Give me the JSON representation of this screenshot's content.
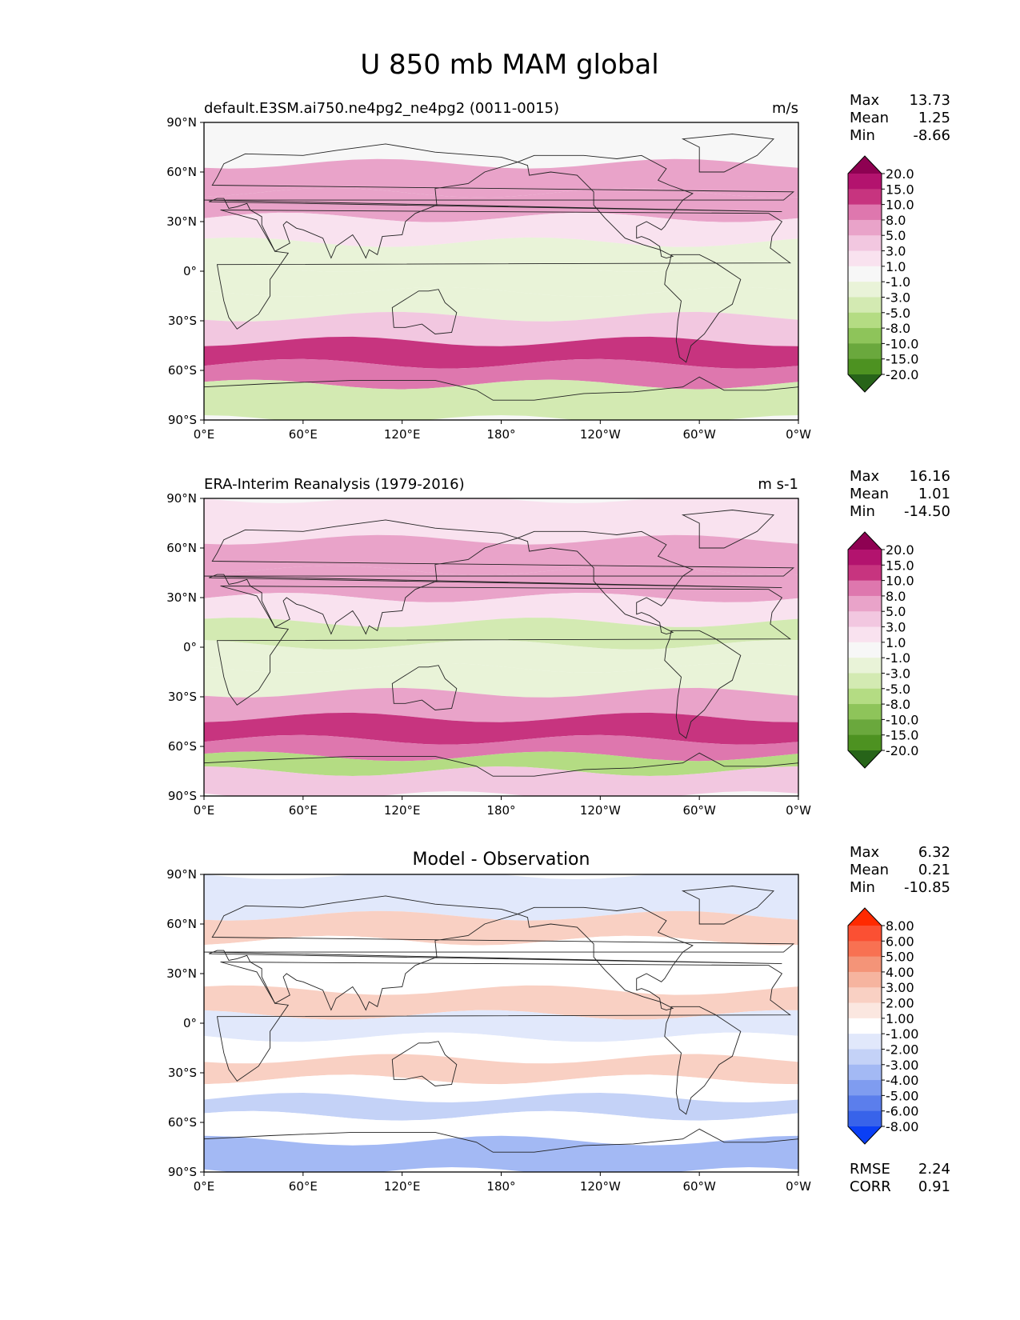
{
  "figure_title": "U 850 mb MAM global",
  "colors": {
    "land_white": "#ffffff",
    "axis": "#000000",
    "coast": "#222222"
  },
  "chart_data": [
    {
      "type": "contour-map",
      "id": "test",
      "title_left": "default.E3SM.ai750.ne4pg2_ne4pg2 (0011-0015)",
      "title_center": "",
      "units": "m/s",
      "stats": [
        {
          "label": "Max",
          "value": "13.73"
        },
        {
          "label": "Mean",
          "value": "1.25"
        },
        {
          "label": "Min",
          "value": "-8.66"
        }
      ],
      "colorbar": {
        "levels": [
          "20.0",
          "15.0",
          "10.0",
          "8.0",
          "5.0",
          "3.0",
          "1.0",
          "-1.0",
          "-3.0",
          "-5.0",
          "-8.0",
          "-10.0",
          "-15.0",
          "-20.0"
        ],
        "colors": [
          "#8e0152",
          "#b3136e",
          "#c7347f",
          "#de77ae",
          "#e9a3c9",
          "#f2c7e0",
          "#f9e2ef",
          "#f7f7f7",
          "#e9f3d8",
          "#d3eab2",
          "#b4dc83",
          "#8ec45a",
          "#6aa83d",
          "#4d9221",
          "#276419"
        ]
      },
      "xticks": [
        "0°E",
        "60°E",
        "120°E",
        "180°",
        "120°W",
        "60°W",
        "0°W"
      ],
      "yticks": [
        "90°N",
        "60°N",
        "30°N",
        "0°",
        "30°S",
        "60°S",
        "90°S"
      ],
      "bands": [
        {
          "lat": 75,
          "value": 0.5
        },
        {
          "lat": 55,
          "value": 6
        },
        {
          "lat": 40,
          "value": 6
        },
        {
          "lat": 25,
          "value": 2
        },
        {
          "lat": 10,
          "value": -2
        },
        {
          "lat": -5,
          "value": -3
        },
        {
          "lat": -20,
          "value": -2
        },
        {
          "lat": -35,
          "value": 4
        },
        {
          "lat": -50,
          "value": 13
        },
        {
          "lat": -62,
          "value": 8
        },
        {
          "lat": -75,
          "value": -5
        }
      ]
    },
    {
      "type": "contour-map",
      "id": "reference",
      "title_left": "ERA-Interim Reanalysis (1979-2016)",
      "title_center": "",
      "units": "m s-1",
      "stats": [
        {
          "label": "Max",
          "value": "16.16"
        },
        {
          "label": "Mean",
          "value": "1.01"
        },
        {
          "label": "Min",
          "value": "-14.50"
        }
      ],
      "colorbar": {
        "levels": [
          "20.0",
          "15.0",
          "10.0",
          "8.0",
          "5.0",
          "3.0",
          "1.0",
          "-1.0",
          "-3.0",
          "-5.0",
          "-8.0",
          "-10.0",
          "-15.0",
          "-20.0"
        ],
        "colors": [
          "#8e0152",
          "#b3136e",
          "#c7347f",
          "#de77ae",
          "#e9a3c9",
          "#f2c7e0",
          "#f9e2ef",
          "#f7f7f7",
          "#e9f3d8",
          "#d3eab2",
          "#b4dc83",
          "#8ec45a",
          "#6aa83d",
          "#4d9221",
          "#276419"
        ]
      },
      "xticks": [
        "0°E",
        "60°E",
        "120°E",
        "180°",
        "120°W",
        "60°W",
        "0°W"
      ],
      "yticks": [
        "90°N",
        "60°N",
        "30°N",
        "0°",
        "30°S",
        "60°S",
        "90°S"
      ],
      "bands": [
        {
          "lat": 75,
          "value": 2
        },
        {
          "lat": 55,
          "value": 5
        },
        {
          "lat": 38,
          "value": 7
        },
        {
          "lat": 22,
          "value": 1
        },
        {
          "lat": 8,
          "value": -5
        },
        {
          "lat": -5,
          "value": -3
        },
        {
          "lat": -20,
          "value": -3
        },
        {
          "lat": -35,
          "value": 5
        },
        {
          "lat": -50,
          "value": 14
        },
        {
          "lat": -62,
          "value": 9
        },
        {
          "lat": -70,
          "value": -6
        },
        {
          "lat": -80,
          "value": 4
        }
      ]
    },
    {
      "type": "contour-map",
      "id": "diff",
      "title_left": "",
      "title_center": "Model - Observation",
      "units": "",
      "stats": [
        {
          "label": "Max",
          "value": "6.32"
        },
        {
          "label": "Mean",
          "value": "0.21"
        },
        {
          "label": "Min",
          "value": "-10.85"
        }
      ],
      "colorbar": {
        "levels": [
          "8.00",
          "6.00",
          "5.00",
          "4.00",
          "3.00",
          "2.00",
          "1.00",
          "-1.00",
          "-2.00",
          "-3.00",
          "-4.00",
          "-5.00",
          "-6.00",
          "-8.00"
        ],
        "colors": [
          "#ff2a00",
          "#fb5033",
          "#f87152",
          "#f49478",
          "#f6b49f",
          "#f9d0c3",
          "#fbe7e0",
          "#ffffff",
          "#e1e8fb",
          "#c4d2f7",
          "#a3b9f4",
          "#7f9cf0",
          "#5b7eec",
          "#3863ea",
          "#0a3ff5"
        ]
      },
      "xticks": [
        "0°E",
        "60°E",
        "120°E",
        "180°",
        "120°W",
        "60°W",
        "0°W"
      ],
      "yticks": [
        "90°N",
        "60°N",
        "30°N",
        "0°",
        "30°S",
        "60°S",
        "90°S"
      ],
      "bands": [
        {
          "lat": 72,
          "value": -1.5
        },
        {
          "lat": 58,
          "value": 2
        },
        {
          "lat": 42,
          "value": 0
        },
        {
          "lat": 28,
          "value": -0.5
        },
        {
          "lat": 12,
          "value": 2
        },
        {
          "lat": -2,
          "value": -1.5
        },
        {
          "lat": -15,
          "value": 0.5
        },
        {
          "lat": -28,
          "value": 2.5
        },
        {
          "lat": -40,
          "value": 0
        },
        {
          "lat": -50,
          "value": -3
        },
        {
          "lat": -62,
          "value": -1
        },
        {
          "lat": -80,
          "value": -4
        }
      ]
    }
  ],
  "diff_metrics": [
    {
      "label": "RMSE",
      "value": "2.24"
    },
    {
      "label": "CORR",
      "value": "0.91"
    }
  ]
}
